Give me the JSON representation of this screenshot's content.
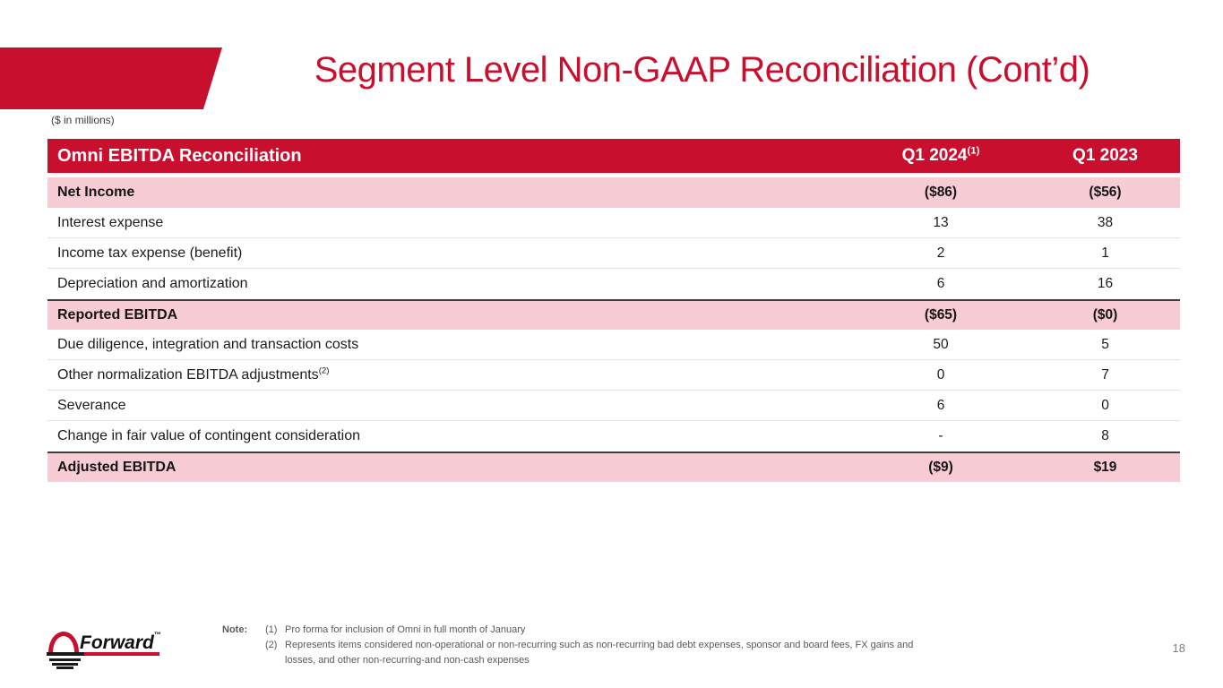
{
  "slide": {
    "title": "Segment Level Non-GAAP Reconciliation (Cont’d)",
    "units_label": "($ in millions)",
    "page_number": "18"
  },
  "colors": {
    "brand_red": "#C8102E",
    "highlight_pink": "#F8CCD4"
  },
  "table": {
    "title": "Omni EBITDA Reconciliation",
    "columns": [
      {
        "label": "Q1 2024",
        "sup": "(1)"
      },
      {
        "label": "Q1 2023",
        "sup": ""
      }
    ],
    "rows": [
      {
        "label": "Net Income",
        "sup": "",
        "values": [
          "($86)",
          "($56)"
        ],
        "highlight": true,
        "top_border": false,
        "bottom_border": false
      },
      {
        "label": "Interest expense",
        "sup": "",
        "values": [
          "13",
          "38"
        ],
        "highlight": false,
        "top_border": false,
        "bottom_border": true
      },
      {
        "label": "Income tax expense (benefit)",
        "sup": "",
        "values": [
          "2",
          "1"
        ],
        "highlight": false,
        "top_border": false,
        "bottom_border": true
      },
      {
        "label": "Depreciation and amortization",
        "sup": "",
        "values": [
          "6",
          "16"
        ],
        "highlight": false,
        "top_border": false,
        "bottom_border": false
      },
      {
        "label": "Reported EBITDA",
        "sup": "",
        "values": [
          "($65)",
          "($0)"
        ],
        "highlight": true,
        "top_border": true,
        "bottom_border": false
      },
      {
        "label": "Due diligence, integration and transaction costs",
        "sup": "",
        "values": [
          "50",
          "5"
        ],
        "highlight": false,
        "top_border": false,
        "bottom_border": true
      },
      {
        "label": "Other normalization EBITDA adjustments",
        "sup": "(2)",
        "values": [
          "0",
          "7"
        ],
        "highlight": false,
        "top_border": false,
        "bottom_border": true
      },
      {
        "label": "Severance",
        "sup": "",
        "values": [
          "6",
          "0"
        ],
        "highlight": false,
        "top_border": false,
        "bottom_border": true
      },
      {
        "label": "Change in fair value of contingent consideration",
        "sup": "",
        "values": [
          "-",
          "8"
        ],
        "highlight": false,
        "top_border": false,
        "bottom_border": false
      },
      {
        "label": "Adjusted EBITDA",
        "sup": "",
        "values": [
          "($9)",
          "$19"
        ],
        "highlight": true,
        "top_border": true,
        "bottom_border": false
      }
    ]
  },
  "footer": {
    "logo_text": "Forward",
    "logo_trademark": "™",
    "note_label": "Note:",
    "notes": [
      {
        "num": "(1)",
        "text": "Pro forma for inclusion of Omni in full month of January"
      },
      {
        "num": "(2)",
        "text": "Represents items considered non-operational or non-recurring such as non-recurring bad debt expenses, sponsor and board fees, FX gains and losses, and other non-recurring-and non-cash expenses"
      }
    ]
  }
}
